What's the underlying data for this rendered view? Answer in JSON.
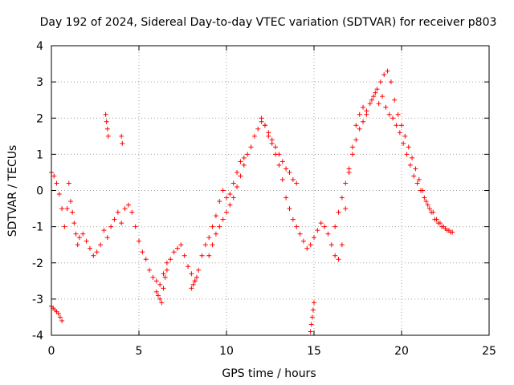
{
  "chart_data": {
    "type": "scatter",
    "title": "Day 192 of 2024, Sidereal Day-to-day VTEC variation (SDTVAR) for receiver p803",
    "xlabel": "GPS time / hours",
    "ylabel": "SDTVAR / TECUs",
    "xlim": [
      0,
      25
    ],
    "ylim": [
      -4,
      4
    ],
    "xticks": [
      0,
      5,
      10,
      15,
      20,
      25
    ],
    "yticks": [
      -4,
      -3,
      -2,
      -1,
      0,
      1,
      2,
      3,
      4
    ],
    "grid": true,
    "marker": "+",
    "color": "#ff0000",
    "series": [
      {
        "name": "SDTVAR",
        "x": [
          0.0,
          0.15,
          0.3,
          0.45,
          0.6,
          0.75,
          0.9,
          1.0,
          1.1,
          1.2,
          1.3,
          1.4,
          1.5,
          1.6,
          1.8,
          2.0,
          2.2,
          2.4,
          2.6,
          2.8,
          3.0,
          3.2,
          3.4,
          3.6,
          3.8,
          4.0,
          4.2,
          4.4,
          4.6,
          4.8,
          5.0,
          5.2,
          5.4,
          5.6,
          5.8,
          6.0,
          6.2,
          6.4,
          6.6,
          6.8,
          7.0,
          7.2,
          7.4,
          7.6,
          7.8,
          8.0,
          8.2,
          8.4,
          8.6,
          8.8,
          9.0,
          9.2,
          9.4,
          9.6,
          9.8,
          10.0,
          10.2,
          10.4,
          10.6,
          10.8,
          11.0,
          11.2,
          11.4,
          11.6,
          11.8,
          12.0,
          12.2,
          12.4,
          12.6,
          12.8,
          13.0,
          13.2,
          13.4,
          13.6,
          13.8,
          14.0,
          14.2,
          14.4,
          14.6,
          14.8,
          15.0,
          15.2,
          15.4,
          15.6,
          15.8,
          16.0,
          16.2,
          16.4,
          16.6,
          16.8,
          17.0,
          17.2,
          17.4,
          17.6,
          17.8,
          18.0,
          18.2,
          18.4,
          18.6,
          18.8,
          19.0,
          19.2,
          19.4,
          19.6,
          19.8,
          20.0,
          20.2,
          20.4,
          20.6,
          20.8,
          21.0,
          21.2,
          21.4,
          21.6,
          21.8,
          22.0,
          22.2,
          22.4,
          22.6,
          22.8,
          0.0,
          0.1,
          0.2,
          0.3,
          0.4,
          0.5,
          0.6,
          14.8,
          14.85,
          14.9,
          14.95,
          15.0,
          3.1,
          3.15,
          3.2,
          3.25,
          4.0,
          4.05,
          18.3,
          18.5,
          18.7,
          18.9,
          19.1,
          19.3,
          19.5,
          19.7,
          19.9,
          20.1,
          20.3,
          20.5,
          20.7,
          20.9,
          21.1,
          21.3,
          21.5,
          21.7,
          21.9,
          22.1,
          22.3,
          22.5,
          22.7,
          22.9,
          6.0,
          6.1,
          6.2,
          6.3,
          6.4,
          6.5,
          6.6,
          12.0,
          12.2,
          12.4,
          12.6,
          12.8,
          13.0,
          13.2,
          13.4,
          13.6,
          13.8,
          14.0,
          16.2,
          16.4,
          16.6,
          16.8,
          17.0,
          17.2,
          17.4,
          17.6,
          17.8,
          18.0,
          8.0,
          8.1,
          8.2,
          8.3,
          9.0,
          9.2,
          9.4,
          9.6,
          9.8,
          10.0,
          10.2,
          10.4,
          10.6,
          10.8,
          11.0
        ],
        "y": [
          0.5,
          0.4,
          0.2,
          -0.1,
          -0.5,
          -1.0,
          -0.5,
          0.2,
          -0.3,
          -0.6,
          -0.9,
          -1.2,
          -1.5,
          -1.3,
          -1.2,
          -1.4,
          -1.6,
          -1.8,
          -1.7,
          -1.5,
          -1.1,
          -1.3,
          -1.0,
          -0.8,
          -0.6,
          -0.9,
          -0.5,
          -0.4,
          -0.6,
          -1.0,
          -1.4,
          -1.7,
          -1.9,
          -2.2,
          -2.4,
          -2.5,
          -2.6,
          -2.3,
          -2.0,
          -1.9,
          -1.7,
          -1.6,
          -1.5,
          -1.8,
          -2.1,
          -2.3,
          -2.5,
          -2.2,
          -1.8,
          -1.5,
          -1.3,
          -1.0,
          -0.7,
          -0.3,
          0.0,
          -0.2,
          -0.1,
          0.2,
          0.5,
          0.8,
          0.9,
          1.0,
          1.2,
          1.5,
          1.7,
          1.9,
          1.8,
          1.5,
          1.3,
          1.0,
          0.7,
          0.3,
          -0.2,
          -0.5,
          -0.8,
          -1.0,
          -1.2,
          -1.4,
          -1.6,
          -1.5,
          -1.3,
          -1.1,
          -0.9,
          -1.0,
          -1.2,
          -1.5,
          -1.8,
          -1.9,
          -1.5,
          -0.5,
          0.5,
          1.2,
          1.8,
          2.1,
          2.3,
          2.2,
          2.4,
          2.6,
          2.8,
          3.0,
          3.2,
          3.3,
          3.0,
          2.5,
          2.1,
          1.8,
          1.5,
          1.2,
          0.9,
          0.6,
          0.3,
          0.0,
          -0.3,
          -0.5,
          -0.6,
          -0.8,
          -0.9,
          -1.0,
          -1.1,
          -1.15,
          -3.2,
          -3.25,
          -3.3,
          -3.35,
          -3.4,
          -3.5,
          -3.6,
          -3.9,
          -3.7,
          -3.5,
          -3.3,
          -3.1,
          2.1,
          1.9,
          1.7,
          1.5,
          1.5,
          1.3,
          2.5,
          2.7,
          2.4,
          2.6,
          2.3,
          2.1,
          2.0,
          1.8,
          1.6,
          1.3,
          1.0,
          0.7,
          0.4,
          0.2,
          0.0,
          -0.2,
          -0.4,
          -0.6,
          -0.8,
          -0.9,
          -1.0,
          -1.05,
          -1.1,
          -1.15,
          -2.8,
          -2.9,
          -3.0,
          -3.1,
          -2.7,
          -2.4,
          -2.2,
          2.0,
          1.8,
          1.6,
          1.4,
          1.2,
          1.0,
          0.8,
          0.6,
          0.5,
          0.3,
          0.2,
          -1.0,
          -0.6,
          -0.2,
          0.2,
          0.6,
          1.0,
          1.4,
          1.7,
          1.9,
          2.1,
          -2.7,
          -2.6,
          -2.5,
          -2.4,
          -1.8,
          -1.5,
          -1.2,
          -1.0,
          -0.8,
          -0.6,
          -0.4,
          -0.2,
          0.1,
          0.4,
          0.7
        ]
      }
    ]
  }
}
